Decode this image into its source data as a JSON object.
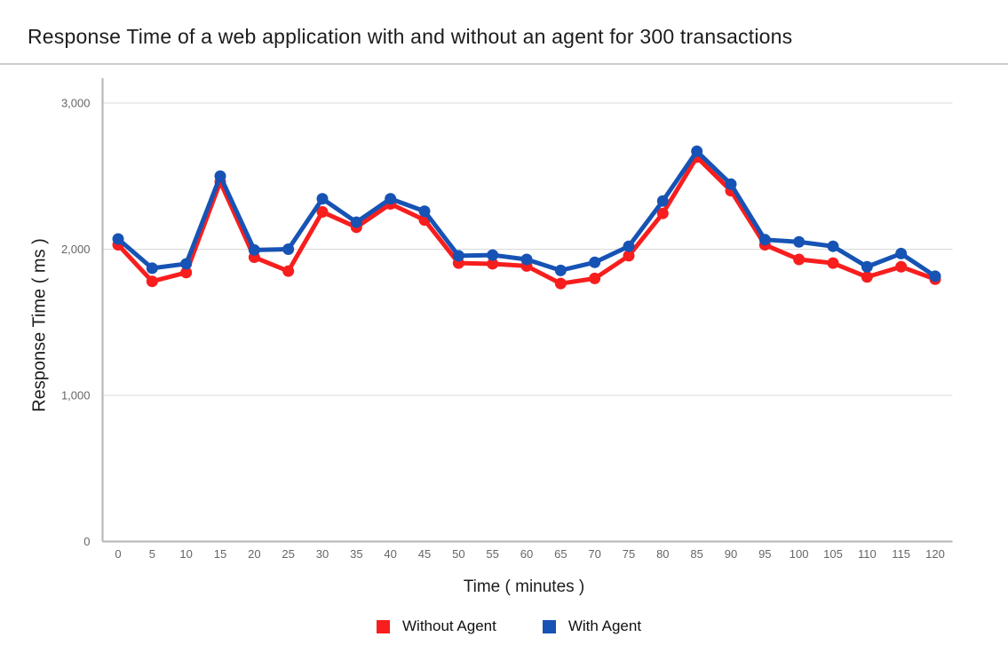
{
  "chart_data": {
    "type": "line",
    "title": "Response Time of a web application with and without an agent for 300 transactions",
    "xlabel": "Time ( minutes )",
    "ylabel": "Response Time ( ms )",
    "x": [
      0,
      5,
      10,
      15,
      20,
      25,
      30,
      35,
      40,
      45,
      50,
      55,
      60,
      65,
      70,
      75,
      80,
      85,
      90,
      95,
      100,
      105,
      110,
      115,
      120
    ],
    "series": [
      {
        "name": "Without Agent",
        "color": "#f81e1e",
        "values": [
          2030,
          1780,
          1840,
          2460,
          1945,
          1850,
          2255,
          2150,
          2310,
          2200,
          1905,
          1900,
          1885,
          1765,
          1800,
          1955,
          2245,
          2630,
          2400,
          2030,
          1930,
          1905,
          1810,
          1880,
          1795
        ]
      },
      {
        "name": "With Agent",
        "color": "#1653b4",
        "values": [
          2070,
          1870,
          1900,
          2500,
          1995,
          2000,
          2345,
          2185,
          2345,
          2260,
          1955,
          1960,
          1930,
          1855,
          1910,
          2020,
          2330,
          2670,
          2445,
          2065,
          2050,
          2020,
          1880,
          1970,
          1815
        ]
      }
    ],
    "ylim": [
      0,
      3000
    ],
    "yticks": [
      0,
      1000,
      2000,
      3000
    ],
    "ytick_labels": [
      "0",
      "1,000",
      "2,000",
      "3,000"
    ],
    "grid": "horizontal-major",
    "legend_position": "bottom",
    "axis_colors": {
      "axis_line": "#b3b3b3",
      "gridline": "#d9d9d9",
      "tick_text": "#666666"
    }
  }
}
